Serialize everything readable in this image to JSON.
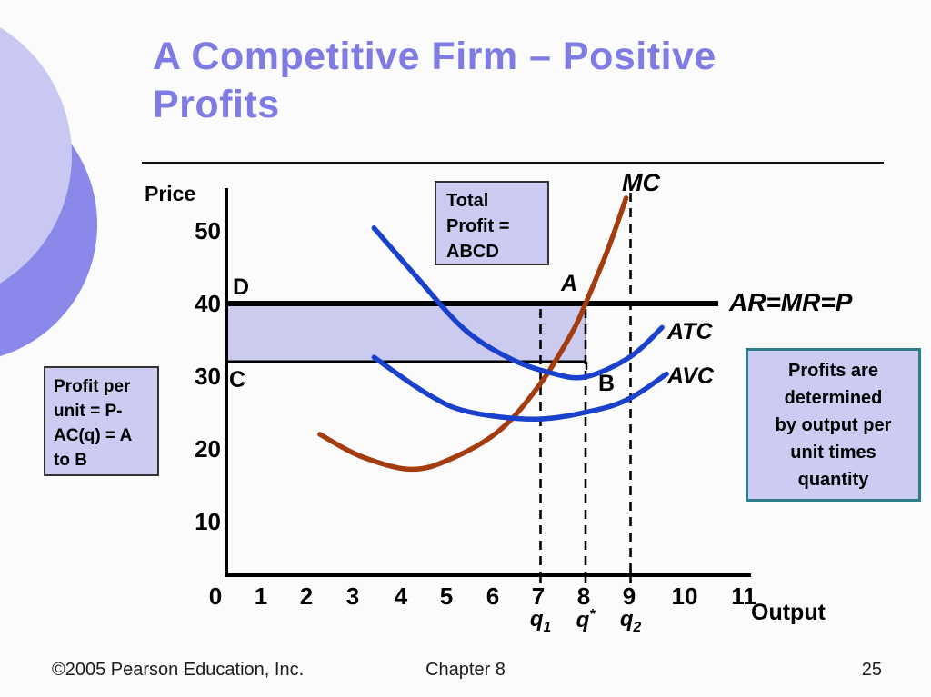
{
  "slide": {
    "title_lines": [
      "A Competitive Firm – Positive",
      "Profits"
    ],
    "footer": {
      "copyright": "©2005 Pearson Education, Inc.",
      "chapter": "Chapter 8",
      "page_number": "25"
    }
  },
  "callouts": {
    "total_profit_lines": [
      "Total",
      "Profit =",
      "ABCD"
    ],
    "profit_per_unit_lines": [
      "Profit per",
      "unit = P-",
      "AC(q) = A",
      "to B"
    ],
    "profits_determined_lines": [
      "Profits are",
      "determined",
      "by output per",
      "unit times",
      "quantity"
    ]
  },
  "chart_data": {
    "type": "line",
    "title": "",
    "xlabel": "Output",
    "ylabel": "Price",
    "xlim": [
      0,
      11.7
    ],
    "ylim": [
      0,
      56
    ],
    "grid": false,
    "x_ticks": [
      "0",
      "1",
      "2",
      "3",
      "4",
      "5",
      "6",
      "7",
      "8",
      "9",
      "10",
      "11"
    ],
    "y_ticks": [
      "50",
      "40",
      "30",
      "20",
      "10"
    ],
    "series": [
      {
        "name": "MC",
        "color": "#A33C0F",
        "points": [
          [
            2.1,
            22
          ],
          [
            3,
            19
          ],
          [
            4.1,
            17.2
          ],
          [
            5,
            18.6
          ],
          [
            6.1,
            22.6
          ],
          [
            7,
            29
          ],
          [
            7.7,
            36
          ],
          [
            8,
            40
          ],
          [
            8.5,
            47.5
          ],
          [
            8.9,
            54.5
          ]
        ]
      },
      {
        "name": "ATC",
        "color": "#1A41CC",
        "points": [
          [
            3.3,
            50.4
          ],
          [
            4.2,
            44
          ],
          [
            5.3,
            36.5
          ],
          [
            6.3,
            32.5
          ],
          [
            7.2,
            30.5
          ],
          [
            8,
            29.9
          ],
          [
            9,
            32.7
          ],
          [
            9.7,
            36.7
          ]
        ]
      },
      {
        "name": "AVC",
        "color": "#1A41CC",
        "points": [
          [
            3.3,
            32.6
          ],
          [
            4.5,
            27.5
          ],
          [
            5.4,
            25.1
          ],
          [
            6.9,
            24.1
          ],
          [
            8.2,
            25.3
          ],
          [
            9,
            27
          ],
          [
            9.8,
            30.3
          ]
        ]
      },
      {
        "name": "AR=MR=P",
        "color": "#000000",
        "hline_y": 40,
        "x_range": [
          0,
          10.95
        ]
      }
    ],
    "profit_rectangle": {
      "corners": "ABCD",
      "price_top": 40,
      "price_bottom": 32,
      "q_left": 0,
      "q_right": 8,
      "fill": "#CBCAEF"
    },
    "point_labels": [
      {
        "label": "D",
        "q": 0,
        "price": 40
      },
      {
        "label": "A",
        "q": 8,
        "price": 40
      },
      {
        "label": "C",
        "q": 0,
        "price": 32
      },
      {
        "label": "B",
        "q": 8,
        "price": 32
      }
    ],
    "dashed_lines_q": [
      7,
      8,
      9
    ],
    "q_axis_labels": [
      {
        "base": "q",
        "sub": "1"
      },
      {
        "base": "q",
        "sup": "*"
      },
      {
        "base": "q",
        "sub": "2"
      }
    ]
  },
  "colors": {
    "title": "#7E7CE2",
    "box_fill": "#CCCCF2",
    "teal_border": "#2E7D8C",
    "mc_curve": "#A33C0F",
    "cost_curves": "#1A41CC",
    "circle_light": "#C9C8F2",
    "circle_dark": "#8A88E8"
  }
}
